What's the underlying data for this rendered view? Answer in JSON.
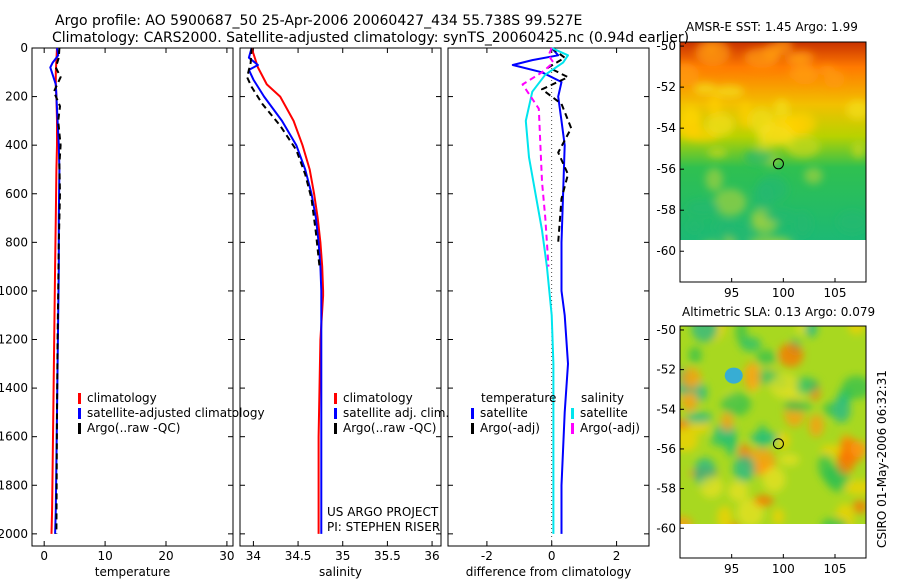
{
  "header": {
    "line1": "Argo profile: AO 5900687_50 25-Apr-2006 20060427_434 55.738S 99.527E",
    "line2": "Climatology: CARS2000. Satellite-adjusted climatology: synTS_20060425.nc (0.94d earlier)"
  },
  "colors": {
    "red": "#ff0000",
    "blue": "#0000ff",
    "black": "#000000",
    "cyan": "#00e5ee",
    "magenta": "#ff00ff"
  },
  "chart_data": [
    {
      "type": "line",
      "id": "temperature",
      "xlabel": "temperature",
      "ylabel": "",
      "xlim": [
        -2,
        31
      ],
      "ylim": [
        2050,
        0
      ],
      "xticks": [
        "0",
        "10",
        "20",
        "30"
      ],
      "xtick_values": [
        0,
        10,
        20,
        30
      ],
      "yticks": [
        "0",
        "200",
        "400",
        "600",
        "800",
        "1000",
        "1200",
        "1400",
        "1600",
        "1800",
        "2000"
      ],
      "ytick_values": [
        0,
        200,
        400,
        600,
        800,
        1000,
        1200,
        1400,
        1600,
        1800,
        2000
      ],
      "series": [
        {
          "name": "climatology",
          "color": "red",
          "dash": false,
          "x": [
            2.1,
            2.0,
            1.9,
            1.9,
            2.0,
            2.1,
            2.1,
            2.0,
            1.9,
            1.8,
            1.7,
            1.6,
            1.5,
            1.4,
            1.3,
            1.2
          ],
          "y": [
            0,
            50,
            100,
            150,
            200,
            300,
            400,
            500,
            700,
            900,
            1100,
            1300,
            1500,
            1700,
            1900,
            2000
          ]
        },
        {
          "name": "satellite-adjusted climatology",
          "color": "blue",
          "dash": false,
          "x": [
            2.1,
            2.3,
            1.4,
            1.0,
            1.9,
            2.2,
            2.4,
            2.5,
            2.4,
            2.4,
            2.3,
            2.2,
            2.1,
            2.0,
            1.9,
            1.8
          ],
          "y": [
            0,
            30,
            60,
            80,
            150,
            300,
            400,
            500,
            700,
            900,
            1100,
            1300,
            1500,
            1700,
            1900,
            2000
          ]
        },
        {
          "name": "Argo(..raw -QC)",
          "color": "black",
          "dash": true,
          "x": [
            2.5,
            2.4,
            1.9,
            2.7,
            1.6,
            2.6,
            2.3,
            2.7,
            2.5,
            2.6,
            2.4,
            2.3,
            2.2,
            2.1,
            2.0
          ],
          "y": [
            0,
            40,
            80,
            120,
            180,
            240,
            300,
            400,
            480,
            600,
            800,
            1000,
            1200,
            1500,
            2000
          ]
        }
      ]
    },
    {
      "type": "line",
      "id": "salinity",
      "xlabel": "salinity",
      "ylabel": "",
      "xlim": [
        33.85,
        36.1
      ],
      "ylim": [
        2050,
        0
      ],
      "xticks": [
        "34",
        "34.5",
        "35",
        "35.5",
        "36"
      ],
      "xtick_values": [
        34,
        34.5,
        35,
        35.5,
        36
      ],
      "series": [
        {
          "name": "climatology",
          "color": "red",
          "dash": false,
          "x": [
            33.98,
            34.05,
            34.15,
            34.3,
            34.45,
            34.55,
            34.63,
            34.68,
            34.72,
            34.75,
            34.77,
            34.78,
            34.78,
            34.75,
            34.73,
            34.73
          ],
          "y": [
            0,
            80,
            150,
            200,
            300,
            400,
            500,
            600,
            700,
            800,
            900,
            1000,
            1020,
            1200,
            1600,
            2000
          ]
        },
        {
          "name": "satellite adj. clim.",
          "color": "blue",
          "dash": false,
          "x": [
            33.98,
            33.95,
            34.05,
            33.95,
            34.0,
            34.12,
            34.32,
            34.48,
            34.58,
            34.65,
            34.7,
            34.73,
            34.75,
            34.76,
            34.76,
            34.76
          ],
          "y": [
            0,
            40,
            70,
            90,
            130,
            200,
            300,
            400,
            500,
            600,
            700,
            800,
            900,
            1000,
            1500,
            2000
          ]
        },
        {
          "name": "Argo(..raw -QC)",
          "color": "black",
          "dash": true,
          "x": [
            33.98,
            33.97,
            33.93,
            33.98,
            34.1,
            34.3,
            34.48,
            34.58,
            34.65,
            34.7,
            34.74
          ],
          "y": [
            0,
            60,
            120,
            160,
            230,
            320,
            420,
            520,
            620,
            760,
            900
          ]
        }
      ]
    },
    {
      "type": "line",
      "id": "difference",
      "xlabel": "difference from climatology",
      "ylabel": "",
      "xlim": [
        -3.2,
        3.0
      ],
      "ylim": [
        2050,
        0
      ],
      "xticks": [
        "-2",
        "0",
        "2"
      ],
      "xtick_values": [
        -2,
        0,
        2
      ],
      "legend_headers": [
        "temperature",
        "salinity"
      ],
      "series": [
        {
          "name": "temperature satellite",
          "color": "blue",
          "dash": false,
          "x": [
            0.0,
            0.2,
            -0.6,
            -1.2,
            -0.3,
            0.3,
            0.2,
            0.3,
            0.4,
            0.35,
            0.3,
            0.3,
            0.3,
            0.4,
            0.5,
            0.4,
            0.3,
            0.3
          ],
          "y": [
            0,
            30,
            50,
            70,
            100,
            140,
            200,
            300,
            400,
            600,
            800,
            900,
            1000,
            1100,
            1300,
            1500,
            1800,
            2000
          ]
        },
        {
          "name": "temperature Argo(-adj)",
          "color": "black",
          "dash": true,
          "x": [
            0.0,
            0.4,
            -0.1,
            0.5,
            -0.3,
            0.3,
            0.6,
            0.2,
            0.5,
            0.3,
            0.2
          ],
          "y": [
            0,
            40,
            80,
            120,
            170,
            230,
            330,
            430,
            520,
            620,
            800
          ]
        },
        {
          "name": "salinity satellite",
          "color": "cyan",
          "dash": false,
          "x": [
            0.0,
            0.5,
            0.35,
            -0.2,
            -0.6,
            -0.8,
            -0.7,
            -0.5,
            -0.3,
            -0.15,
            0.0,
            0.05,
            0.05,
            0.05
          ],
          "y": [
            0,
            30,
            60,
            110,
            180,
            300,
            450,
            600,
            750,
            900,
            1100,
            1300,
            1600,
            2000
          ]
        },
        {
          "name": "salinity Argo(-adj)",
          "color": "magenta",
          "dash": true,
          "x": [
            0.0,
            -0.1,
            0.05,
            -0.3,
            -0.9,
            -0.4,
            -0.35,
            -0.3,
            -0.2,
            -0.1
          ],
          "y": [
            0,
            30,
            60,
            100,
            150,
            250,
            400,
            550,
            700,
            900
          ]
        }
      ]
    },
    {
      "type": "heatmap",
      "id": "sst",
      "title": "AMSR-E SST: 1.45 Argo: 1.99",
      "xlim": [
        90,
        108
      ],
      "ylim": [
        -61.5,
        -49.8
      ],
      "data_ylim": [
        -60,
        -49.8
      ],
      "xticks": [
        "95",
        "100",
        "105"
      ],
      "xtick_values": [
        95,
        100,
        105
      ],
      "yticks": [
        "-50",
        "-52",
        "-54",
        "-56",
        "-58",
        "-60"
      ],
      "ytick_values": [
        -50,
        -52,
        -54,
        -56,
        -58,
        -60
      ],
      "marker": {
        "lon": 99.527,
        "lat": -55.738
      }
    },
    {
      "type": "heatmap",
      "id": "sla",
      "title": "Altimetric SLA: 0.13 Argo: 0.079",
      "xlim": [
        90,
        108
      ],
      "ylim": [
        -61.5,
        -49.8
      ],
      "data_ylim": [
        -60,
        -49.8
      ],
      "xticks": [
        "95",
        "100",
        "105"
      ],
      "xtick_values": [
        95,
        100,
        105
      ],
      "yticks": [
        "-50",
        "-52",
        "-54",
        "-56",
        "-58",
        "-60"
      ],
      "ytick_values": [
        -50,
        -52,
        -54,
        -56,
        -58,
        -60
      ],
      "marker": {
        "lon": 99.527,
        "lat": -55.738
      }
    }
  ],
  "legends": {
    "temperature": [
      "climatology",
      "satellite-adjusted climatology",
      "Argo(..raw -QC)"
    ],
    "salinity": [
      "climatology",
      "satellite adj. clim.",
      "Argo(..raw -QC)"
    ],
    "difference_temperature": [
      "satellite",
      "Argo(-adj)"
    ],
    "difference_salinity": [
      "satellite",
      "Argo(-adj)"
    ]
  },
  "credits": {
    "project": "US ARGO PROJECT",
    "pi": "PI: STEPHEN RISER"
  },
  "footer": {
    "timestamp": "CSIRO 01-May-2006 06:32:31"
  }
}
